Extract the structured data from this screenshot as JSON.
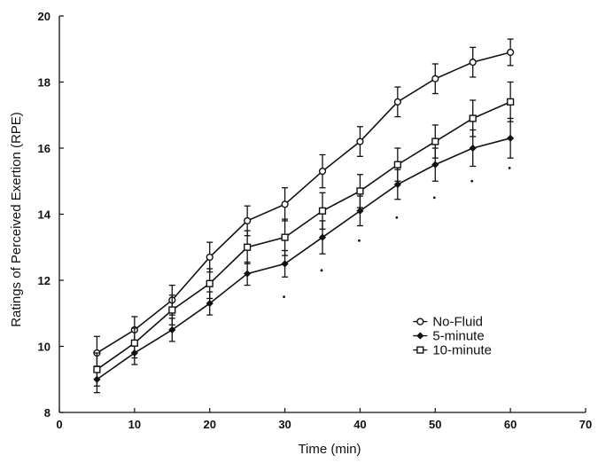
{
  "chart_data": {
    "type": "line",
    "title": "",
    "xlabel": "Time (min)",
    "ylabel": "Ratings of Perceived Exertion (RPE)",
    "xlim": [
      0,
      70
    ],
    "ylim": [
      8,
      20
    ],
    "xticks": [
      "0",
      "10",
      "20",
      "30",
      "40",
      "50",
      "60",
      "70"
    ],
    "yticks": [
      "8",
      "10",
      "12",
      "14",
      "16",
      "18",
      "20"
    ],
    "grid": false,
    "legend_position": "center-right",
    "x": [
      5,
      10,
      15,
      20,
      25,
      30,
      35,
      40,
      45,
      50,
      55,
      60
    ],
    "series": [
      {
        "name": "No-Fluid",
        "marker": "circle",
        "values": [
          9.8,
          10.5,
          11.4,
          12.7,
          13.8,
          14.3,
          15.3,
          16.2,
          17.4,
          18.1,
          18.6,
          18.9
        ],
        "errors": [
          0.5,
          0.4,
          0.45,
          0.45,
          0.45,
          0.5,
          0.5,
          0.45,
          0.45,
          0.45,
          0.45,
          0.4
        ]
      },
      {
        "name": "5-minute",
        "marker": "diamond",
        "values": [
          9.0,
          9.8,
          10.5,
          11.3,
          12.2,
          12.5,
          13.3,
          14.1,
          14.9,
          15.5,
          16.0,
          16.3
        ],
        "errors": [
          0.4,
          0.35,
          0.35,
          0.35,
          0.35,
          0.4,
          0.5,
          0.45,
          0.45,
          0.5,
          0.55,
          0.6
        ]
      },
      {
        "name": "10-minute",
        "marker": "square",
        "values": [
          9.3,
          10.1,
          11.1,
          11.9,
          13.0,
          13.3,
          14.1,
          14.7,
          15.5,
          16.2,
          16.9,
          17.4
        ],
        "errors": [
          0.5,
          0.45,
          0.45,
          0.45,
          0.5,
          0.55,
          0.55,
          0.5,
          0.5,
          0.5,
          0.55,
          0.6
        ]
      }
    ],
    "annotations": [
      {
        "x": 30,
        "y": 11.5,
        "text": "·"
      },
      {
        "x": 35,
        "y": 12.3,
        "text": "·"
      },
      {
        "x": 40,
        "y": 13.2,
        "text": "·"
      },
      {
        "x": 45,
        "y": 13.9,
        "text": "·"
      },
      {
        "x": 50,
        "y": 14.5,
        "text": "·"
      },
      {
        "x": 55,
        "y": 15.0,
        "text": "·"
      },
      {
        "x": 60,
        "y": 15.4,
        "text": "·"
      }
    ],
    "colors": {
      "line": "#111111",
      "background": "#ffffff"
    }
  }
}
